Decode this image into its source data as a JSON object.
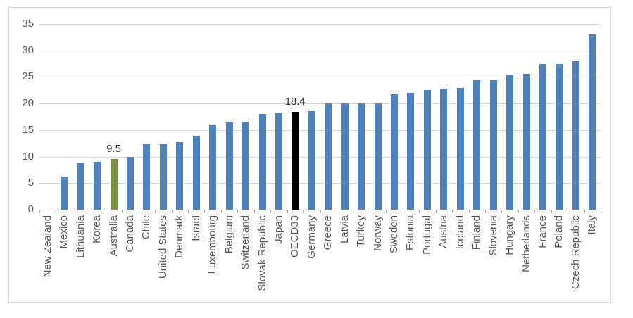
{
  "chart_data": {
    "type": "bar",
    "title": "",
    "categories": [
      "New Zealand",
      "Mexico",
      "Lithuania",
      "Korea",
      "Australia",
      "Canada",
      "Chile",
      "United States",
      "Denmark",
      "Israel",
      "Luxembourg",
      "Belgium",
      "Switzerland",
      "Slovak Republic",
      "Japan",
      "OECD33",
      "Germany",
      "Greece",
      "Latvia",
      "Turkey",
      "Norway",
      "Sweden",
      "Estonia",
      "Portugal",
      "Austria",
      "Iceland",
      "Finland",
      "Slovenia",
      "Hungary",
      "Netherlands",
      "France",
      "Poland",
      "Czech Republic",
      "Italy"
    ],
    "values": [
      0,
      6.3,
      8.7,
      9,
      9.5,
      9.9,
      12.4,
      12.4,
      12.8,
      13.9,
      16,
      16.4,
      16.6,
      18,
      18.3,
      18.4,
      18.6,
      20,
      20,
      20,
      20,
      21.7,
      22,
      22.6,
      22.8,
      22.9,
      24.4,
      24.4,
      25.5,
      25.6,
      27.5,
      27.5,
      28,
      33
    ],
    "data_labels": [
      {
        "category": "Australia",
        "text": "9.5"
      },
      {
        "category": "OECD33",
        "text": "18.4"
      }
    ],
    "highlights": [
      {
        "category": "Australia",
        "color": "#76923C"
      },
      {
        "category": "OECD33",
        "color": "#000000"
      }
    ],
    "default_bar_color": "#4E81BD",
    "xlabel": "",
    "ylabel": "",
    "y_axis": {
      "min": 0,
      "max": 35,
      "ticks": [
        0,
        5,
        10,
        15,
        20,
        25,
        30,
        35
      ]
    },
    "grid": true,
    "legend": false
  },
  "colors": {
    "bar_default": "#4E81BD",
    "bar_highlight_green": "#76923C",
    "bar_highlight_black": "#000000",
    "gridline": "#D9D9D9",
    "axis_line": "#A6A6A6",
    "axis_text": "#595959",
    "data_label_text": "#3B3B3B",
    "frame_border": "#D9D9D9",
    "background": "#FFFFFF"
  }
}
